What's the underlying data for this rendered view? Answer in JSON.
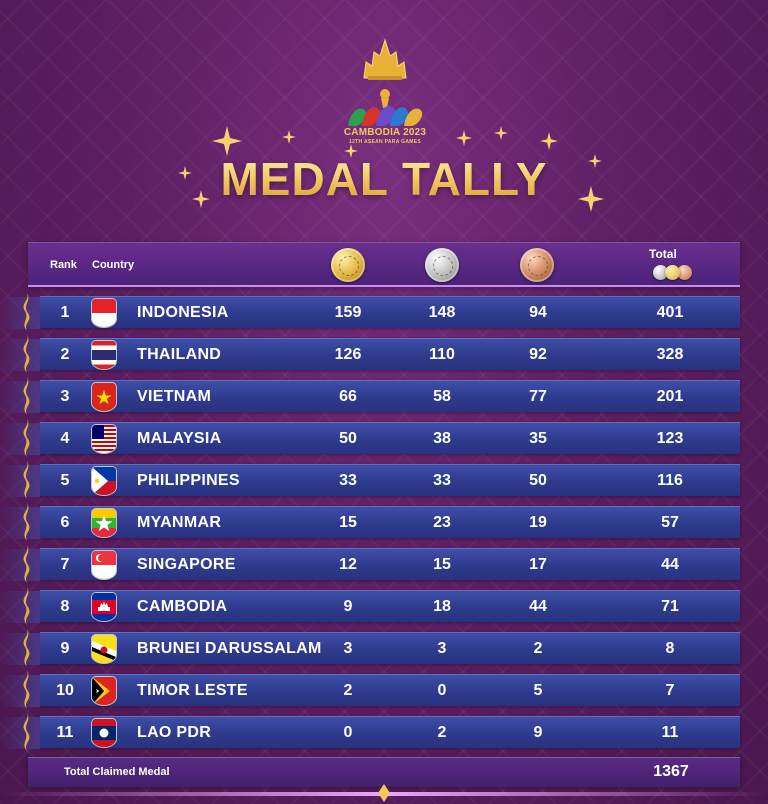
{
  "header": {
    "event_name": "CAMBODIA 2023",
    "event_sub": "12TH ASEAN PARA GAMES",
    "title": "MEDAL TALLY"
  },
  "table": {
    "col_rank": "Rank",
    "col_country": "Country",
    "col_total": "Total",
    "medal_icons": [
      "gold-medal",
      "silver-medal",
      "bronze-medal"
    ],
    "rows": [
      {
        "rank": "1",
        "country": "INDONESIA",
        "gold": "159",
        "silver": "148",
        "bronze": "94",
        "total": "401"
      },
      {
        "rank": "2",
        "country": "THAILAND",
        "gold": "126",
        "silver": "110",
        "bronze": "92",
        "total": "328"
      },
      {
        "rank": "3",
        "country": "VIETNAM",
        "gold": "66",
        "silver": "58",
        "bronze": "77",
        "total": "201"
      },
      {
        "rank": "4",
        "country": "MALAYSIA",
        "gold": "50",
        "silver": "38",
        "bronze": "35",
        "total": "123"
      },
      {
        "rank": "5",
        "country": "PHILIPPINES",
        "gold": "33",
        "silver": "33",
        "bronze": "50",
        "total": "116"
      },
      {
        "rank": "6",
        "country": "MYANMAR",
        "gold": "15",
        "silver": "23",
        "bronze": "19",
        "total": "57"
      },
      {
        "rank": "7",
        "country": "SINGAPORE",
        "gold": "12",
        "silver": "15",
        "bronze": "17",
        "total": "44"
      },
      {
        "rank": "8",
        "country": "CAMBODIA",
        "gold": "9",
        "silver": "18",
        "bronze": "44",
        "total": "71"
      },
      {
        "rank": "9",
        "country": "BRUNEI DARUSSALAM",
        "gold": "3",
        "silver": "3",
        "bronze": "2",
        "total": "8"
      },
      {
        "rank": "10",
        "country": "TIMOR LESTE",
        "gold": "2",
        "silver": "0",
        "bronze": "5",
        "total": "7"
      },
      {
        "rank": "11",
        "country": "LAO PDR",
        "gold": "0",
        "silver": "2",
        "bronze": "9",
        "total": "11"
      }
    ],
    "footer_label": "Total Claimed Medal",
    "footer_total": "1367"
  },
  "colors": {
    "background": "#5e1f63",
    "title_gold": "#f4cd68",
    "row_blue": "#2e3a8c",
    "header_purple": "#4c2278"
  }
}
